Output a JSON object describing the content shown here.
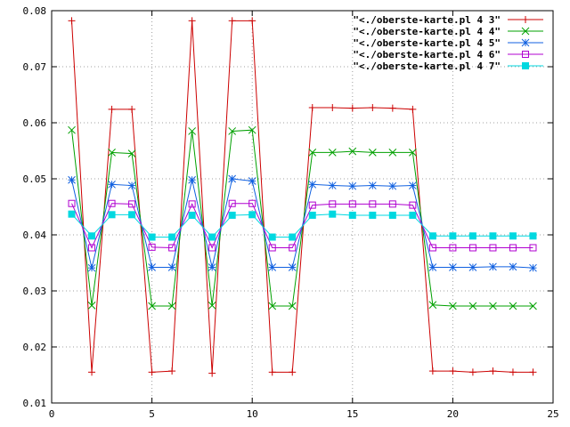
{
  "chart_data": {
    "type": "line",
    "title": "",
    "xlabel": "",
    "ylabel": "",
    "xlim": [
      0,
      25
    ],
    "ylim": [
      0.01,
      0.08
    ],
    "grid": true,
    "legend_position": "top-right",
    "x_ticks": [
      0,
      5,
      10,
      15,
      20,
      25
    ],
    "x_tick_labels": [
      "0",
      "5",
      "10",
      "15",
      "20",
      "25"
    ],
    "y_ticks": [
      0.01,
      0.02,
      0.03,
      0.04,
      0.05,
      0.06,
      0.07,
      0.08
    ],
    "y_tick_labels": [
      "0.01",
      "0.02",
      "0.03",
      "0.04",
      "0.05",
      "0.06",
      "0.07",
      "0.08"
    ],
    "x": [
      1,
      2,
      3,
      4,
      5,
      6,
      7,
      8,
      9,
      10,
      11,
      12,
      13,
      14,
      15,
      16,
      17,
      18,
      19,
      20,
      21,
      22,
      23,
      24
    ],
    "series": [
      {
        "name": "\"<./oberste-karte.pl 4 3\"",
        "color": "#cc0000",
        "marker": "plus",
        "values": [
          0.0782,
          0.0155,
          0.0624,
          0.0624,
          0.0155,
          0.0157,
          0.0782,
          0.0153,
          0.0782,
          0.0782,
          0.0155,
          0.0155,
          0.0627,
          0.0627,
          0.0626,
          0.0627,
          0.0626,
          0.0624,
          0.0157,
          0.0157,
          0.0155,
          0.0157,
          0.0155,
          0.0155
        ]
      },
      {
        "name": "\"<./oberste-karte.pl 4 4\"",
        "color": "#00a000",
        "marker": "cross",
        "values": [
          0.0587,
          0.0274,
          0.0547,
          0.0545,
          0.0273,
          0.0273,
          0.0585,
          0.0274,
          0.0585,
          0.0587,
          0.0273,
          0.0273,
          0.0547,
          0.0547,
          0.0549,
          0.0547,
          0.0547,
          0.0547,
          0.0275,
          0.0273,
          0.0273,
          0.0273,
          0.0273,
          0.0273
        ]
      },
      {
        "name": "\"<./oberste-karte.pl 4 5\"",
        "color": "#1060e0",
        "marker": "star",
        "values": [
          0.0498,
          0.0341,
          0.049,
          0.0488,
          0.0342,
          0.0342,
          0.0498,
          0.0342,
          0.05,
          0.0496,
          0.0342,
          0.0342,
          0.049,
          0.0488,
          0.0487,
          0.0488,
          0.0487,
          0.0488,
          0.0342,
          0.0342,
          0.0342,
          0.0343,
          0.0343,
          0.0341
        ]
      },
      {
        "name": "\"<./oberste-karte.pl 4 6\"",
        "color": "#b000d0",
        "marker": "square-open",
        "values": [
          0.0456,
          0.0377,
          0.0456,
          0.0455,
          0.0378,
          0.0377,
          0.0455,
          0.0377,
          0.0456,
          0.0456,
          0.0377,
          0.0377,
          0.0453,
          0.0455,
          0.0455,
          0.0455,
          0.0455,
          0.0453,
          0.0377,
          0.0377,
          0.0377,
          0.0377,
          0.0377,
          0.0377
        ]
      },
      {
        "name": "\"<./oberste-karte.pl 4 7\"",
        "color": "#00d8e0",
        "marker": "square-filled",
        "values": [
          0.0437,
          0.0398,
          0.0436,
          0.0436,
          0.0396,
          0.0396,
          0.0435,
          0.0396,
          0.0435,
          0.0436,
          0.0396,
          0.0396,
          0.0435,
          0.0437,
          0.0435,
          0.0435,
          0.0435,
          0.0435,
          0.0398,
          0.0398,
          0.0398,
          0.0398,
          0.0398,
          0.0398
        ]
      }
    ]
  }
}
